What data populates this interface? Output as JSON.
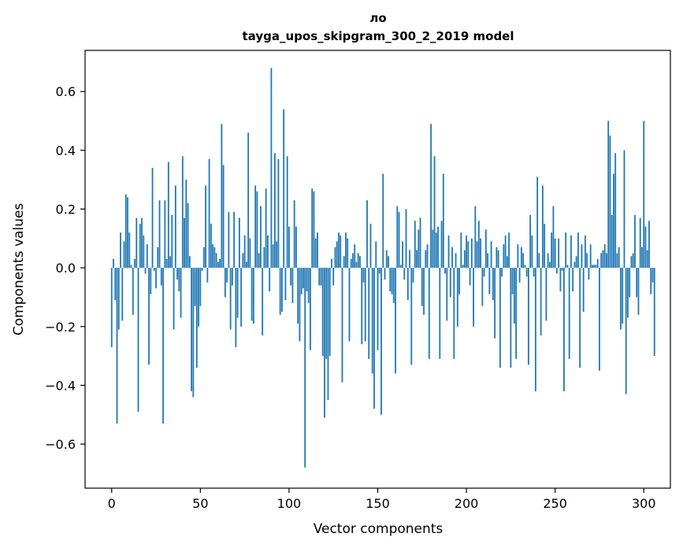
{
  "chart_data": {
    "type": "bar",
    "title_line1": "ло",
    "title_line2": "tayga_upos_skipgram_300_2_2019 model",
    "xlabel": "Vector components",
    "ylabel": "Components values",
    "xlim": [
      -15,
      315
    ],
    "ylim": [
      -0.75,
      0.74
    ],
    "xticks": [
      0,
      50,
      100,
      150,
      200,
      250,
      300
    ],
    "xtick_labels": [
      "0",
      "50",
      "100",
      "150",
      "200",
      "250",
      "300"
    ],
    "yticks": [
      -0.6,
      -0.4,
      -0.2,
      0.0,
      0.2,
      0.4,
      0.6
    ],
    "ytick_labels": [
      "−0.6",
      "−0.4",
      "−0.2",
      "0.0",
      "0.2",
      "0.4",
      "0.6"
    ],
    "bar_color": "#1f77b4",
    "series": [
      {
        "name": "ло",
        "values": [
          -0.27,
          0.03,
          -0.11,
          -0.53,
          -0.21,
          0.12,
          -0.18,
          0.09,
          0.25,
          0.24,
          0.12,
          0.01,
          -0.16,
          0.03,
          0.17,
          -0.49,
          0.15,
          0.17,
          0.11,
          -0.02,
          0.08,
          -0.33,
          -0.09,
          0.34,
          -0.01,
          -0.07,
          0.07,
          0.23,
          -0.06,
          -0.53,
          0.23,
          0.03,
          0.36,
          0.04,
          0.18,
          -0.21,
          0.28,
          -0.04,
          -0.08,
          -0.17,
          0.38,
          0.17,
          0.3,
          0.22,
          0.04,
          -0.42,
          -0.44,
          -0.13,
          -0.34,
          -0.2,
          -0.13,
          -0.01,
          0.07,
          0.28,
          -0.05,
          0.37,
          0.15,
          0.08,
          0.07,
          0.05,
          0.02,
          0.03,
          0.49,
          0.35,
          -0.1,
          -0.05,
          0.19,
          -0.21,
          -0.06,
          0.19,
          -0.27,
          -0.17,
          0.17,
          -0.2,
          0.05,
          0.11,
          0.02,
          0.46,
          0.1,
          -0.18,
          -0.19,
          0.28,
          0.26,
          0.05,
          0.21,
          -0.23,
          0.07,
          0.27,
          0.11,
          -0.08,
          0.68,
          0.08,
          0.39,
          0.09,
          0.37,
          -0.16,
          -0.15,
          0.54,
          -0.11,
          0.38,
          0.14,
          -0.06,
          -0.12,
          0.23,
          0.14,
          -0.19,
          -0.25,
          -0.09,
          -0.07,
          -0.68,
          -0.08,
          -0.12,
          -0.28,
          0.27,
          0.26,
          0.1,
          0.12,
          -0.06,
          -0.06,
          -0.3,
          -0.51,
          -0.31,
          -0.45,
          -0.3,
          0.03,
          -0.06,
          0.07,
          0.09,
          0.12,
          0.11,
          -0.39,
          0.04,
          0.12,
          0.1,
          -0.25,
          0.03,
          0.05,
          0.08,
          0.02,
          0.05,
          0.04,
          -0.26,
          -0.05,
          -0.25,
          0.23,
          -0.31,
          0.15,
          -0.36,
          -0.48,
          0.09,
          -0.28,
          -0.02,
          -0.5,
          0.32,
          -0.04,
          0.06,
          0.04,
          -0.08,
          -0.09,
          -0.12,
          -0.36,
          0.21,
          0.19,
          0.01,
          0.09,
          -0.04,
          0.2,
          -0.11,
          0.06,
          -0.33,
          -0.05,
          0.16,
          0.06,
          0.13,
          0.17,
          -0.13,
          -0.16,
          0.06,
          0.08,
          -0.31,
          0.49,
          0.13,
          0.38,
          0.12,
          0.14,
          -0.31,
          0.16,
          0.32,
          -0.02,
          -0.18,
          0.11,
          -0.1,
          0.07,
          -0.31,
          0.05,
          -0.2,
          -0.09,
          0.12,
          0.01,
          0.06,
          0.11,
          0.09,
          -0.06,
          0.1,
          -0.2,
          0.21,
          0.09,
          0.16,
          0.1,
          -0.13,
          -0.03,
          0.13,
          0.05,
          -0.09,
          0.09,
          -0.11,
          -0.24,
          0.07,
          0.06,
          -0.34,
          -0.03,
          0.08,
          0.11,
          0.04,
          0.12,
          -0.34,
          -0.09,
          -0.19,
          -0.31,
          0.08,
          -0.05,
          0.07,
          0.05,
          0.01,
          -0.03,
          -0.33,
          0.18,
          0.11,
          -0.03,
          -0.42,
          0.31,
          0.05,
          -0.23,
          0.28,
          0.15,
          -0.18,
          0.05,
          0.02,
          0.12,
          0.21,
          0.1,
          -0.02,
          0.1,
          -0.08,
          -0.01,
          -0.42,
          0.12,
          0.01,
          -0.31,
          0.11,
          -0.08,
          0.02,
          0.04,
          0.12,
          -0.34,
          0.08,
          -0.15,
          0.11,
          0.05,
          -0.04,
          0.08,
          0.01,
          0.01,
          0.01,
          0.03,
          -0.35,
          0.05,
          0.06,
          0.08,
          0.05,
          0.5,
          0.45,
          0.18,
          0.32,
          0.39,
          0.05,
          0.07,
          -0.21,
          -0.19,
          0.4,
          -0.43,
          -0.17,
          -0.1,
          0.04,
          0.05,
          0.18,
          -0.1,
          -0.16,
          0.17,
          0.07,
          0.5,
          0.14,
          0.06,
          0.16,
          -0.09,
          -0.05,
          -0.3
        ]
      }
    ]
  }
}
